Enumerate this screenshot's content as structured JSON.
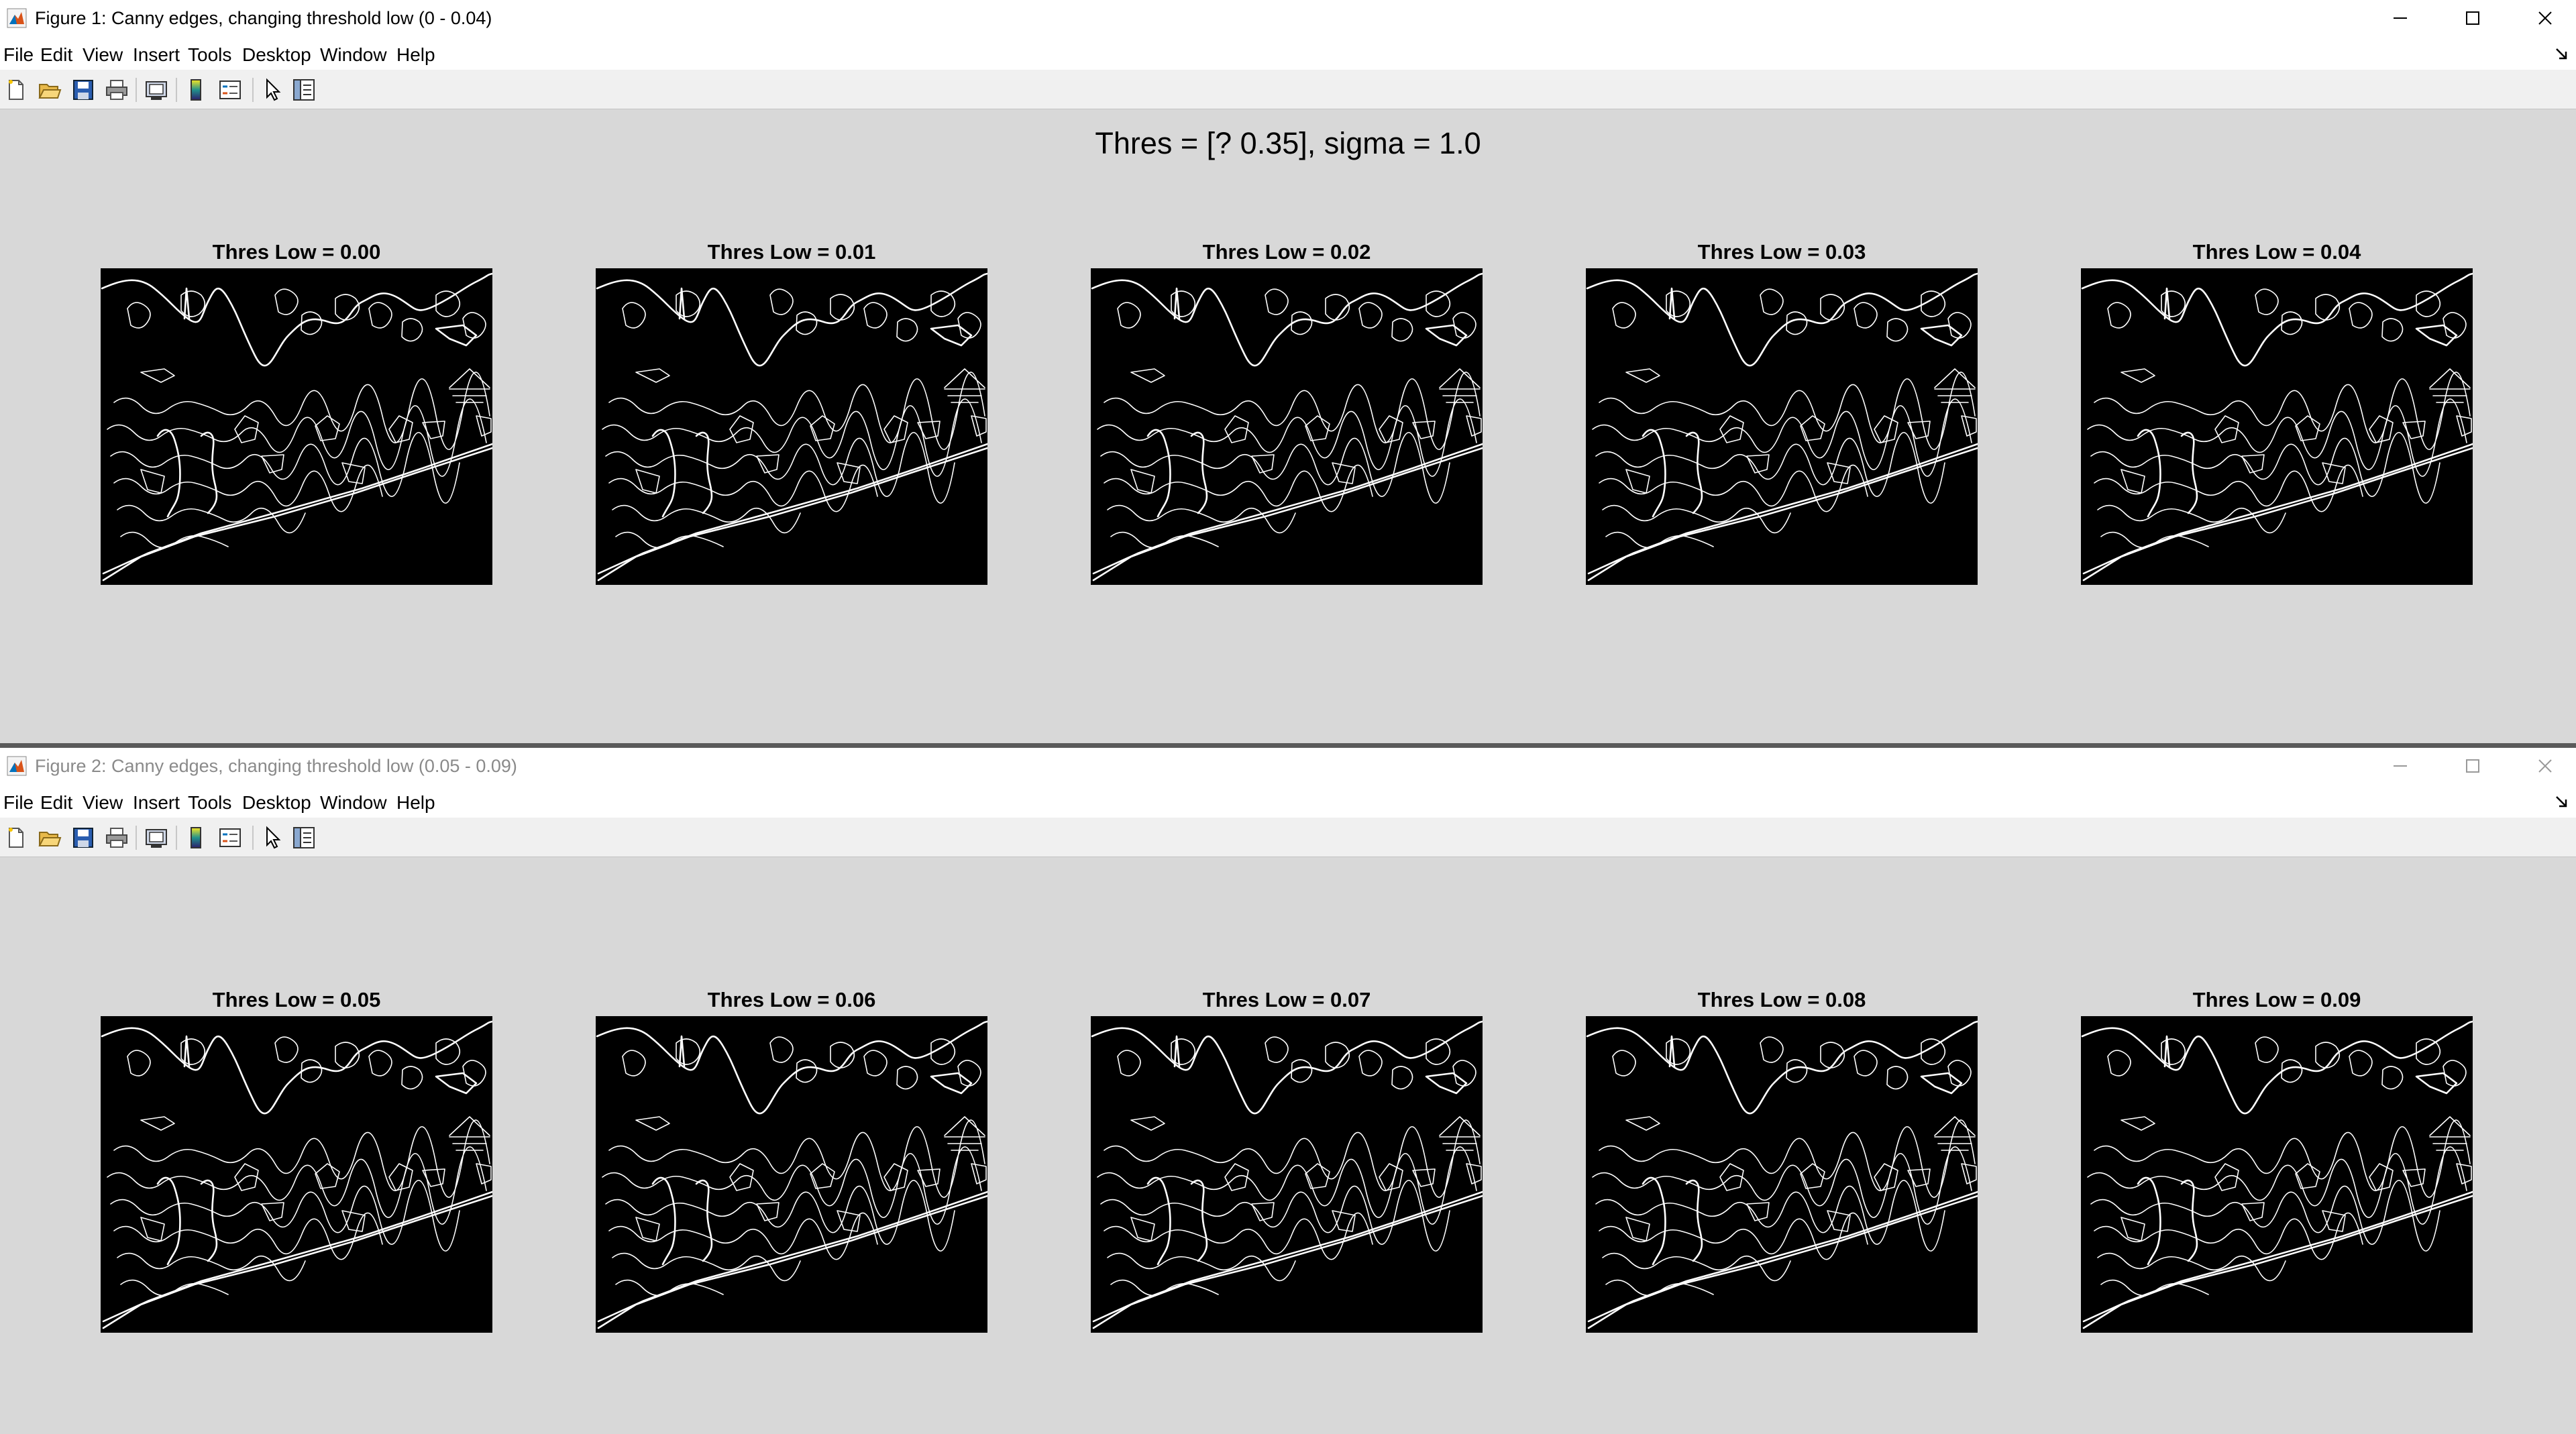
{
  "figures": [
    {
      "window_title": "Figure 1: Canny edges, changing threshold low (0 - 0.04)",
      "active": true,
      "suptitle": "Thres = [? 0.35], sigma = 1.0",
      "subplot_titles": [
        "Thres Low = 0.00",
        "Thres Low = 0.01",
        "Thres Low = 0.02",
        "Thres Low = 0.03",
        "Thres Low = 0.04"
      ]
    },
    {
      "window_title": "Figure 2: Canny edges, changing threshold low (0.05 - 0.09)",
      "active": false,
      "suptitle": "",
      "subplot_titles": [
        "Thres Low = 0.05",
        "Thres Low = 0.06",
        "Thres Low = 0.07",
        "Thres Low = 0.08",
        "Thres Low = 0.09"
      ]
    }
  ],
  "menu": [
    "File",
    "Edit",
    "View",
    "Insert",
    "Tools",
    "Desktop",
    "Window",
    "Help"
  ],
  "toolbar_icons": [
    "new-figure-icon",
    "open-file-icon",
    "save-icon",
    "print-icon",
    "print-preview-icon",
    "insert-colorbar-icon",
    "insert-legend-icon",
    "edit-plot-arrow-icon",
    "property-inspector-icon"
  ],
  "window_controls": [
    "minimize-icon",
    "maximize-icon",
    "close-icon"
  ],
  "colors": {
    "titlebar": "#ffffff",
    "figure_bg": "#d8d8d8",
    "axes_bg": "#000000",
    "edges": "#ffffff",
    "inactive_title": "#8a8a8a"
  }
}
